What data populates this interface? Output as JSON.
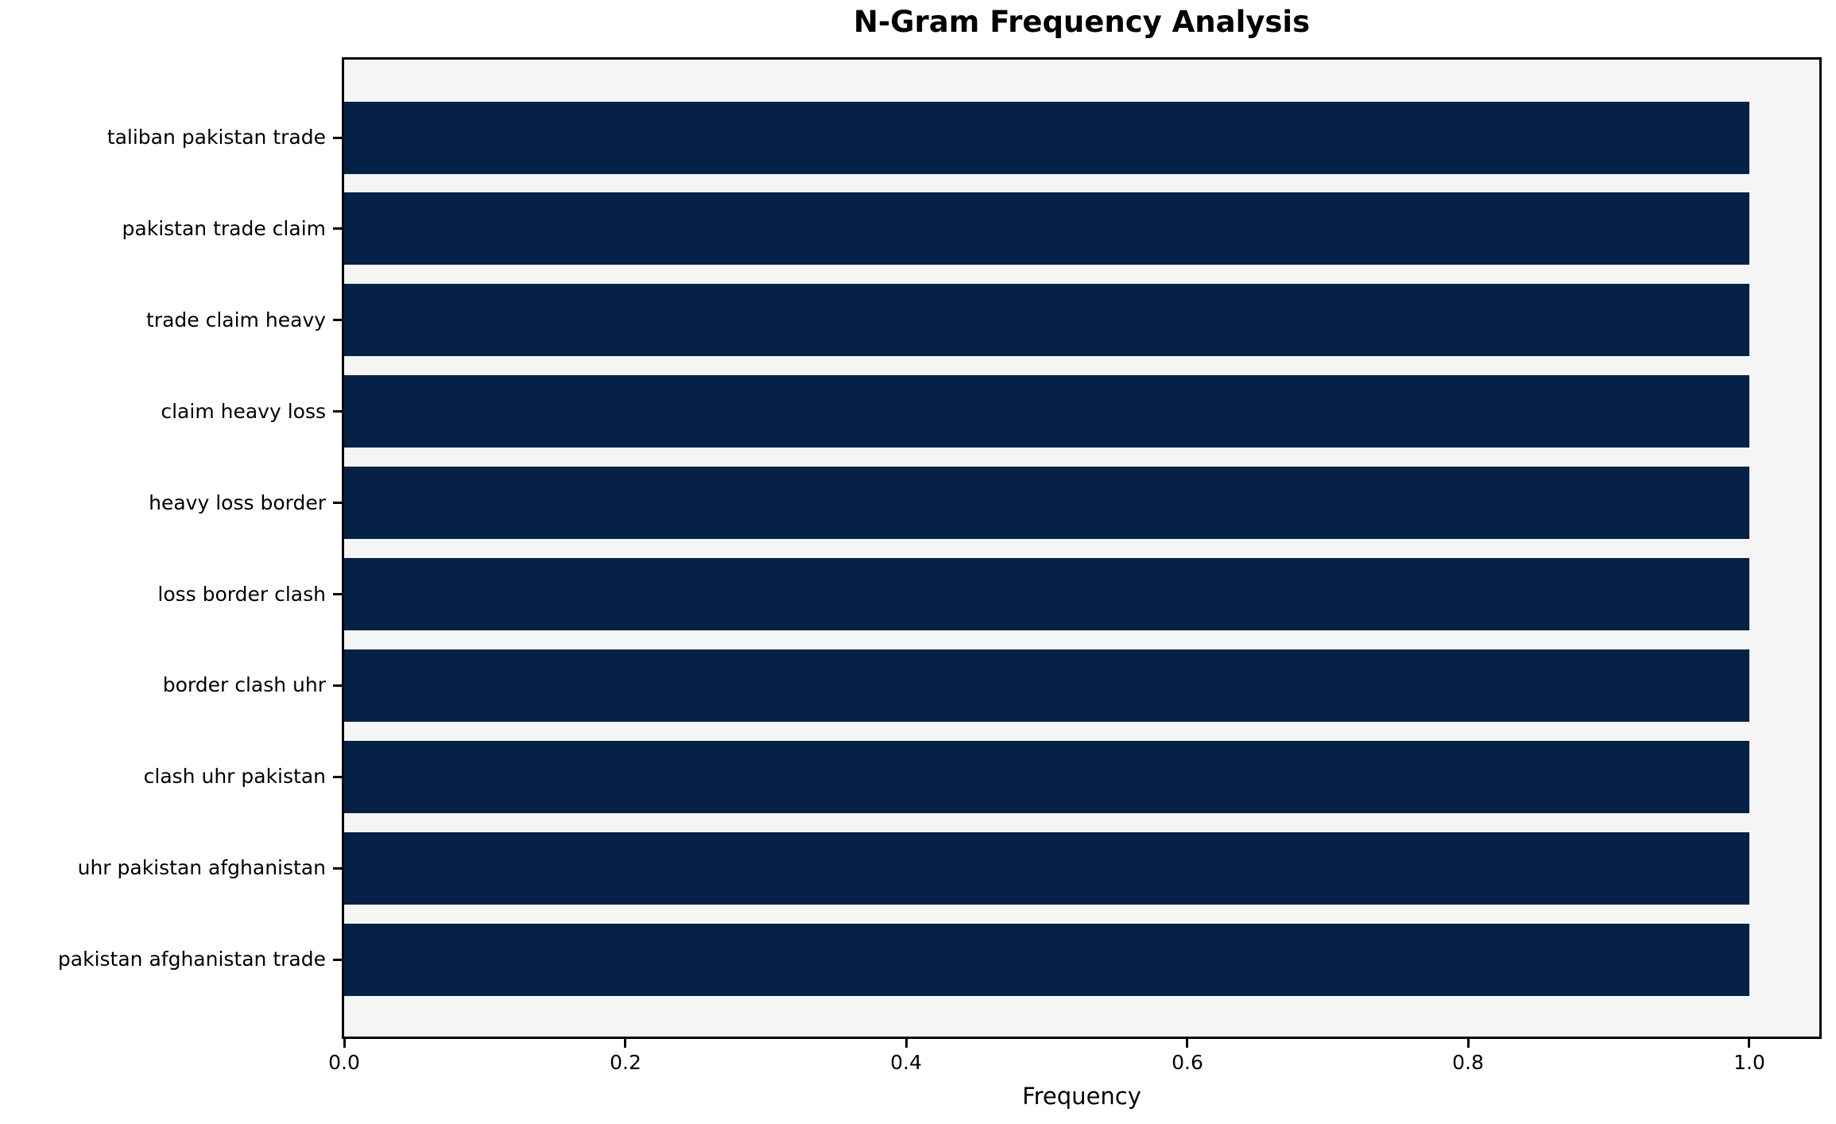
{
  "chart_data": {
    "type": "bar",
    "orientation": "horizontal",
    "title": "N-Gram Frequency Analysis",
    "xlabel": "Frequency",
    "ylabel": "",
    "categories": [
      "taliban pakistan trade",
      "pakistan trade claim",
      "trade claim heavy",
      "claim heavy loss",
      "heavy loss border",
      "loss border clash",
      "border clash uhr",
      "clash uhr pakistan",
      "uhr pakistan afghanistan",
      "pakistan afghanistan trade"
    ],
    "values": [
      1.0,
      1.0,
      1.0,
      1.0,
      1.0,
      1.0,
      1.0,
      1.0,
      1.0,
      1.0
    ],
    "x_ticks": [
      "0.0",
      "0.2",
      "0.4",
      "0.6",
      "0.8",
      "1.0"
    ],
    "x_tick_values": [
      0.0,
      0.2,
      0.4,
      0.6,
      0.8,
      1.0
    ],
    "xlim": [
      0,
      1.05
    ],
    "grid": false,
    "legend": null,
    "colors": {
      "bar": "#052246",
      "plot_background": "#f5f5f5",
      "figure_background": "#ffffff",
      "spine": "#000000",
      "text": "#000000"
    }
  }
}
